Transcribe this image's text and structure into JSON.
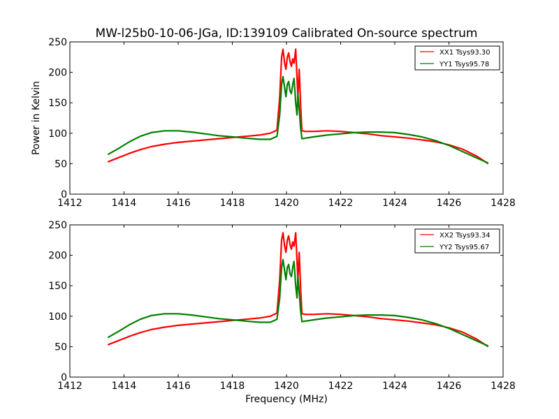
{
  "chart_data": [
    {
      "type": "line",
      "title": "MW-l25b0-10-06-JGa, ID:139109 Calibrated On-source spectrum",
      "xlabel": "",
      "ylabel": "Power in Kelvin",
      "xlim": [
        1412,
        1428
      ],
      "ylim": [
        0,
        250
      ],
      "xticks": [
        "1412",
        "1414",
        "1416",
        "1418",
        "1420",
        "1422",
        "1424",
        "1426",
        "1428"
      ],
      "yticks": [
        "0",
        "50",
        "100",
        "150",
        "200",
        "250"
      ],
      "legend_position": "top-right",
      "grid": false,
      "series": [
        {
          "name": "XX1 Tsys93.30",
          "color": "#ff0000",
          "x": [
            1413.4,
            1413.8,
            1414.2,
            1414.6,
            1415.0,
            1415.5,
            1416.0,
            1416.5,
            1417.0,
            1417.5,
            1418.0,
            1418.5,
            1419.0,
            1419.4,
            1419.65,
            1419.75,
            1419.82,
            1419.87,
            1419.93,
            1419.98,
            1420.03,
            1420.08,
            1420.13,
            1420.18,
            1420.23,
            1420.28,
            1420.34,
            1420.39,
            1420.42,
            1420.47,
            1420.52,
            1420.57,
            1420.7,
            1421.0,
            1421.5,
            1422.0,
            1422.5,
            1423.0,
            1423.5,
            1424.0,
            1424.5,
            1425.0,
            1425.5,
            1426.0,
            1426.5,
            1427.0,
            1427.45
          ],
          "y": [
            53,
            60,
            67,
            73,
            78,
            82,
            85,
            87,
            89,
            91,
            93,
            95,
            97,
            100,
            105,
            160,
            225,
            238,
            215,
            205,
            225,
            232,
            218,
            210,
            222,
            215,
            238,
            190,
            160,
            205,
            150,
            104,
            103,
            103,
            104,
            103,
            101,
            99,
            96,
            94,
            92,
            89,
            86,
            81,
            74,
            63,
            50
          ]
        },
        {
          "name": "YY1 Tsys95.78",
          "color": "#008000",
          "x": [
            1413.4,
            1413.8,
            1414.2,
            1414.6,
            1415.0,
            1415.5,
            1416.0,
            1416.5,
            1417.0,
            1417.5,
            1418.0,
            1418.5,
            1419.0,
            1419.4,
            1419.65,
            1419.75,
            1419.82,
            1419.87,
            1419.93,
            1419.98,
            1420.03,
            1420.08,
            1420.13,
            1420.18,
            1420.23,
            1420.28,
            1420.34,
            1420.39,
            1420.42,
            1420.47,
            1420.52,
            1420.57,
            1420.7,
            1421.0,
            1421.5,
            1422.0,
            1422.5,
            1423.0,
            1423.5,
            1424.0,
            1424.5,
            1425.0,
            1425.5,
            1426.0,
            1426.5,
            1427.0,
            1427.45
          ],
          "y": [
            65,
            75,
            86,
            95,
            101,
            104,
            104,
            102,
            99,
            96,
            94,
            92,
            90,
            90,
            95,
            130,
            180,
            193,
            175,
            160,
            180,
            185,
            170,
            165,
            180,
            190,
            150,
            130,
            165,
            140,
            110,
            91,
            92,
            94,
            97,
            99,
            101,
            102,
            102,
            101,
            98,
            94,
            88,
            80,
            70,
            60,
            51
          ]
        }
      ]
    },
    {
      "type": "line",
      "title": "",
      "xlabel": "Frequency (MHz)",
      "ylabel": "",
      "xlim": [
        1412,
        1428
      ],
      "ylim": [
        0,
        250
      ],
      "xticks": [
        "1412",
        "1414",
        "1416",
        "1418",
        "1420",
        "1422",
        "1424",
        "1426",
        "1428"
      ],
      "yticks": [
        "0",
        "50",
        "100",
        "150",
        "200",
        "250"
      ],
      "legend_position": "top-right",
      "grid": false,
      "series": [
        {
          "name": "XX2 Tsys93.34",
          "color": "#ff0000",
          "x": [
            1413.4,
            1413.8,
            1414.2,
            1414.6,
            1415.0,
            1415.5,
            1416.0,
            1416.5,
            1417.0,
            1417.5,
            1418.0,
            1418.5,
            1419.0,
            1419.4,
            1419.65,
            1419.75,
            1419.82,
            1419.87,
            1419.93,
            1419.98,
            1420.03,
            1420.08,
            1420.13,
            1420.18,
            1420.23,
            1420.28,
            1420.34,
            1420.39,
            1420.42,
            1420.47,
            1420.52,
            1420.57,
            1420.7,
            1421.0,
            1421.5,
            1422.0,
            1422.5,
            1423.0,
            1423.5,
            1424.0,
            1424.5,
            1425.0,
            1425.5,
            1426.0,
            1426.5,
            1427.0,
            1427.45
          ],
          "y": [
            53,
            60,
            67,
            73,
            78,
            82,
            85,
            87,
            89,
            91,
            93,
            95,
            97,
            100,
            105,
            160,
            225,
            237,
            215,
            205,
            225,
            232,
            218,
            210,
            222,
            215,
            237,
            190,
            160,
            205,
            150,
            104,
            103,
            103,
            104,
            103,
            101,
            99,
            96,
            94,
            92,
            89,
            86,
            81,
            74,
            63,
            50
          ]
        },
        {
          "name": "YY2 Tsys95.67",
          "color": "#008000",
          "x": [
            1413.4,
            1413.8,
            1414.2,
            1414.6,
            1415.0,
            1415.5,
            1416.0,
            1416.5,
            1417.0,
            1417.5,
            1418.0,
            1418.5,
            1419.0,
            1419.4,
            1419.65,
            1419.75,
            1419.82,
            1419.87,
            1419.93,
            1419.98,
            1420.03,
            1420.08,
            1420.13,
            1420.18,
            1420.23,
            1420.28,
            1420.34,
            1420.39,
            1420.42,
            1420.47,
            1420.52,
            1420.57,
            1420.7,
            1421.0,
            1421.5,
            1422.0,
            1422.5,
            1423.0,
            1423.5,
            1424.0,
            1424.5,
            1425.0,
            1425.5,
            1426.0,
            1426.5,
            1427.0,
            1427.45
          ],
          "y": [
            65,
            75,
            86,
            95,
            101,
            104,
            104,
            102,
            99,
            96,
            94,
            92,
            90,
            90,
            95,
            130,
            180,
            193,
            175,
            160,
            180,
            185,
            170,
            165,
            180,
            190,
            150,
            130,
            165,
            140,
            110,
            91,
            92,
            94,
            97,
            99,
            101,
            102,
            102,
            101,
            98,
            94,
            88,
            80,
            70,
            60,
            51
          ]
        }
      ]
    }
  ]
}
